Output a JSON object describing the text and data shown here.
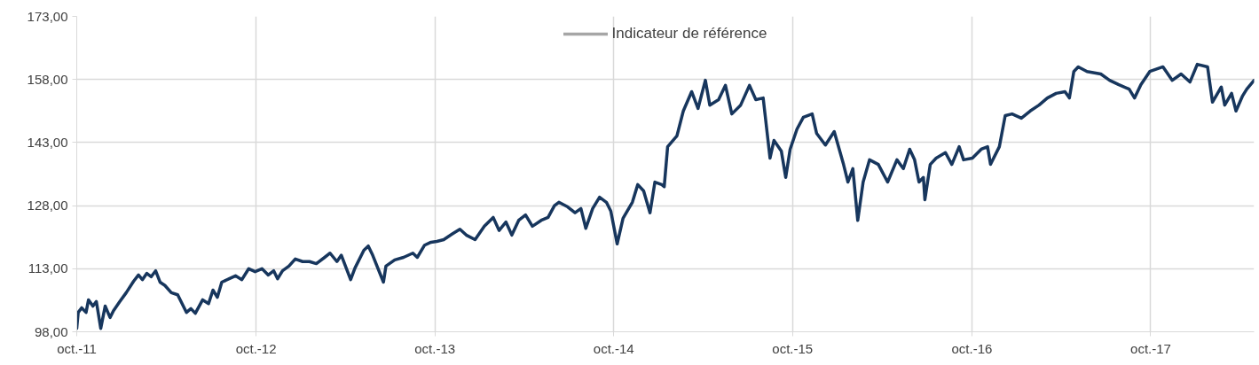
{
  "chart_data": {
    "type": "line",
    "xlim": [
      "2011-10-01",
      "2018-04-30"
    ],
    "xticks": [
      {
        "value": "2011-10-01",
        "label": "oct.-11"
      },
      {
        "value": "2012-10-01",
        "label": "oct.-12"
      },
      {
        "value": "2013-10-01",
        "label": "oct.-13"
      },
      {
        "value": "2014-10-01",
        "label": "oct.-14"
      },
      {
        "value": "2015-10-01",
        "label": "oct.-15"
      },
      {
        "value": "2016-10-01",
        "label": "oct.-16"
      },
      {
        "value": "2017-10-01",
        "label": "oct.-17"
      }
    ],
    "ylim": [
      98,
      173
    ],
    "yticks": [
      {
        "value": 98,
        "label": "98,00"
      },
      {
        "value": 113,
        "label": "113,00"
      },
      {
        "value": 128,
        "label": "128,00"
      },
      {
        "value": 143,
        "label": "143,00"
      },
      {
        "value": 158,
        "label": "158,00"
      },
      {
        "value": 173,
        "label": "173,00"
      }
    ],
    "grid": true,
    "legend": "top",
    "marker": "none",
    "line_style": "solid",
    "series": [
      {
        "color": "#17365d",
        "x": [
          "2011-10-01",
          "2011-10-04",
          "2011-10-11",
          "2011-10-20",
          "2011-10-25",
          "2011-11-03",
          "2011-11-10",
          "2011-11-19",
          "2011-11-28",
          "2011-12-08",
          "2011-12-15",
          "2011-12-28",
          "2012-01-10",
          "2012-01-25",
          "2012-02-04",
          "2012-02-12",
          "2012-02-21",
          "2012-03-01",
          "2012-03-10",
          "2012-03-19",
          "2012-03-29",
          "2012-04-11",
          "2012-04-24",
          "2012-05-12",
          "2012-05-21",
          "2012-05-30",
          "2012-06-14",
          "2012-06-26",
          "2012-07-05",
          "2012-07-14",
          "2012-07-23",
          "2012-08-07",
          "2012-08-20",
          "2012-09-02",
          "2012-09-16",
          "2012-09-29",
          "2012-10-13",
          "2012-10-26",
          "2012-11-06",
          "2012-11-14",
          "2012-11-24",
          "2012-12-07",
          "2012-12-20",
          "2013-01-04",
          "2013-01-18",
          "2013-02-01",
          "2013-02-18",
          "2013-03-01",
          "2013-03-15",
          "2013-03-24",
          "2013-04-12",
          "2013-04-21",
          "2013-05-09",
          "2013-05-18",
          "2013-05-27",
          "2013-06-18",
          "2013-06-23",
          "2013-07-11",
          "2013-07-29",
          "2013-08-17",
          "2013-08-26",
          "2013-09-10",
          "2013-09-23",
          "2013-10-05",
          "2013-10-19",
          "2013-11-07",
          "2013-11-21",
          "2013-12-04",
          "2013-12-22",
          "2014-01-10",
          "2014-01-28",
          "2014-02-09",
          "2014-02-23",
          "2014-03-07",
          "2014-03-21",
          "2014-04-04",
          "2014-04-18",
          "2014-05-06",
          "2014-05-20",
          "2014-06-02",
          "2014-06-11",
          "2014-06-29",
          "2014-07-14",
          "2014-07-26",
          "2014-08-05",
          "2014-08-19",
          "2014-09-02",
          "2014-09-16",
          "2014-09-25",
          "2014-10-08",
          "2014-10-20",
          "2014-11-08",
          "2014-11-19",
          "2014-12-01",
          "2014-12-14",
          "2014-12-24",
          "2015-01-07",
          "2015-01-12",
          "2015-01-19",
          "2015-02-07",
          "2015-02-20",
          "2015-03-09",
          "2015-03-22",
          "2015-04-06",
          "2015-04-15",
          "2015-05-03",
          "2015-05-17",
          "2015-05-30",
          "2015-06-17",
          "2015-07-05",
          "2015-07-18",
          "2015-08-02",
          "2015-08-16",
          "2015-08-24",
          "2015-09-08",
          "2015-09-17",
          "2015-09-26",
          "2015-10-10",
          "2015-10-23",
          "2015-11-10",
          "2015-11-19",
          "2015-12-07",
          "2015-12-25",
          "2016-01-13",
          "2016-01-22",
          "2016-02-01",
          "2016-02-11",
          "2016-02-22",
          "2016-03-06",
          "2016-03-24",
          "2016-04-12",
          "2016-05-01",
          "2016-05-14",
          "2016-05-27",
          "2016-06-06",
          "2016-06-15",
          "2016-06-24",
          "2016-06-27",
          "2016-07-08",
          "2016-07-20",
          "2016-08-08",
          "2016-08-21",
          "2016-09-05",
          "2016-09-14",
          "2016-10-02",
          "2016-10-20",
          "2016-11-02",
          "2016-11-08",
          "2016-11-26",
          "2016-12-08",
          "2016-12-22",
          "2017-01-10",
          "2017-01-28",
          "2017-02-15",
          "2017-03-04",
          "2017-03-22",
          "2017-04-09",
          "2017-04-18",
          "2017-04-27",
          "2017-05-06",
          "2017-05-24",
          "2017-06-21",
          "2017-07-09",
          "2017-07-27",
          "2017-08-18",
          "2017-08-29",
          "2017-09-11",
          "2017-09-29",
          "2017-10-26",
          "2017-11-14",
          "2017-12-02",
          "2017-12-20",
          "2018-01-04",
          "2018-01-25",
          "2018-02-04",
          "2018-02-22",
          "2018-03-01",
          "2018-03-15",
          "2018-03-24",
          "2018-04-06",
          "2018-04-15",
          "2018-04-30"
        ],
        "values": [
          98.8,
          102.6,
          103.7,
          102.6,
          105.6,
          104.1,
          105.2,
          98.8,
          104.1,
          101.4,
          103.0,
          105.2,
          107.3,
          110.0,
          111.5,
          110.4,
          111.9,
          111.1,
          112.5,
          109.8,
          109.0,
          107.3,
          106.8,
          102.6,
          103.5,
          102.4,
          105.6,
          104.7,
          107.9,
          106.2,
          109.8,
          110.6,
          111.3,
          110.4,
          113.0,
          112.3,
          113.0,
          111.5,
          112.5,
          110.6,
          112.5,
          113.6,
          115.3,
          114.7,
          114.7,
          114.2,
          115.7,
          116.7,
          114.7,
          116.2,
          110.4,
          113.2,
          117.4,
          118.4,
          116.2,
          109.8,
          113.6,
          115.1,
          115.7,
          116.7,
          115.7,
          118.6,
          119.3,
          119.5,
          119.9,
          121.4,
          122.4,
          121.0,
          119.9,
          123.1,
          125.2,
          122.1,
          124.1,
          121.0,
          124.5,
          125.8,
          123.1,
          124.5,
          125.2,
          128.0,
          128.8,
          127.7,
          126.3,
          127.3,
          122.6,
          127.3,
          130.0,
          128.8,
          126.7,
          118.9,
          125.0,
          128.8,
          133.0,
          131.5,
          126.3,
          133.6,
          133.0,
          132.5,
          142.0,
          144.6,
          150.5,
          155.1,
          151.1,
          157.8,
          151.9,
          153.2,
          156.6,
          149.8,
          151.9,
          156.6,
          153.2,
          153.6,
          139.3,
          143.5,
          141.0,
          134.7,
          141.4,
          146.2,
          149.0,
          149.8,
          145.2,
          142.4,
          145.6,
          137.8,
          133.6,
          136.8,
          124.5,
          133.6,
          138.9,
          137.8,
          133.6,
          138.9,
          136.8,
          141.4,
          138.9,
          133.6,
          134.7,
          129.4,
          137.8,
          139.3,
          140.6,
          137.8,
          142.0,
          138.9,
          139.3,
          141.4,
          142.0,
          137.8,
          142.0,
          149.4,
          149.8,
          148.8,
          150.5,
          151.9,
          153.6,
          154.7,
          155.1,
          153.6,
          159.9,
          161.0,
          159.9,
          159.3,
          157.8,
          156.8,
          155.7,
          153.6,
          156.8,
          159.9,
          161.0,
          157.8,
          159.3,
          157.4,
          161.6,
          161.0,
          152.6,
          156.2,
          151.9,
          154.7,
          150.5,
          154.0,
          155.7,
          157.8
        ]
      },
      {
        "name": "Indicateur de référence",
        "color": "#a6a6a6"
      }
    ]
  }
}
